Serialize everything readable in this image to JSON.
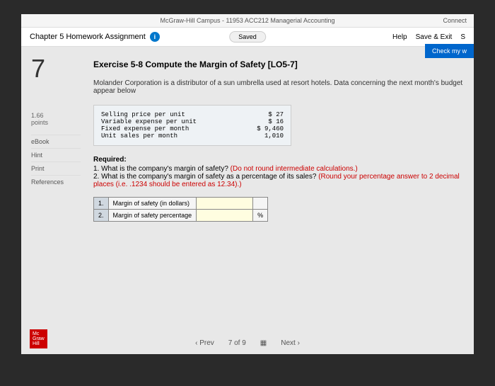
{
  "topbar": {
    "course": "McGraw-Hill Campus - 11953 ACC212 Managerial Accounting",
    "connect": "Connect"
  },
  "header": {
    "chapter": "Chapter 5 Homework Assignment",
    "saved": "Saved",
    "help": "Help",
    "save_exit": "Save & Exit",
    "submit": "S"
  },
  "check_button": "Check my w",
  "question": {
    "number": "7",
    "points_val": "1.66",
    "points_label": "points"
  },
  "sidebar": {
    "ebook": "eBook",
    "hint": "Hint",
    "print": "Print",
    "references": "References"
  },
  "exercise": {
    "title": "Exercise 5-8 Compute the Margin of Safety [LO5-7]",
    "description": "Molander Corporation is a distributor of a sun umbrella used at resort hotels. Data concerning the next month's budget appear below"
  },
  "data_rows": [
    {
      "label": "Selling price per unit",
      "cur": "$",
      "val": "27"
    },
    {
      "label": "Variable expense per unit",
      "cur": "$",
      "val": "16"
    },
    {
      "label": "Fixed expense per month",
      "cur": "$",
      "val": "9,460"
    },
    {
      "label": "Unit sales per month",
      "cur": "",
      "val": "1,010"
    }
  ],
  "required": {
    "heading": "Required:",
    "q1a": "1. What is the company's margin of safety? ",
    "q1b": "(Do not round intermediate calculations.)",
    "q2a": "2. What is the company's margin of safety as a percentage of its sales? ",
    "q2b": "(Round your percentage answer to 2 decimal places (i.e. .1234 should be entered as 12.34).)"
  },
  "answer_table": {
    "r1n": "1.",
    "r1l": "Margin of safety (in dollars)",
    "r2n": "2.",
    "r2l": "Margin of safety percentage",
    "pct": "%"
  },
  "footer": {
    "prev": "Prev",
    "pos": "7 of 9",
    "next": "Next",
    "logo1": "Mc",
    "logo2": "Graw",
    "logo3": "Hill"
  }
}
